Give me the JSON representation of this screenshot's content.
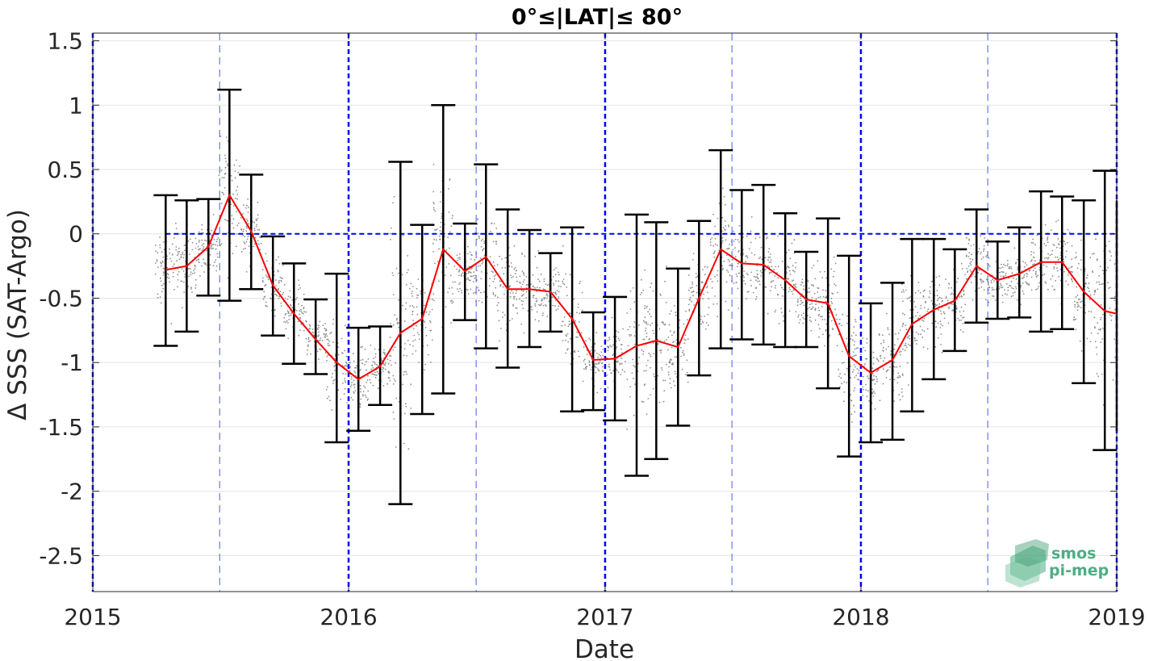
{
  "chart_data": {
    "type": "line",
    "title": "0°≤|LAT|≤ 80°",
    "xlabel": "Date",
    "ylabel": "Δ SSS (SAT-Argo)",
    "xlim": [
      "2015-01-01",
      "2019-01-01"
    ],
    "ylim": [
      -2.78,
      1.56
    ],
    "x_ticks": [
      "2015",
      "2016",
      "2017",
      "2018",
      "2019"
    ],
    "y_ticks": [
      "1.5",
      "1",
      "0.5",
      "0",
      "-0.5",
      "-1",
      "-1.5",
      "-2",
      "-2.5"
    ],
    "grid": true,
    "zero_reference_line": 0,
    "year_boundaries": [
      "2015-01-01",
      "2016-01-01",
      "2017-01-01",
      "2018-01-01",
      "2019-01-01"
    ],
    "half_year_lines": [
      "2015-07-01",
      "2016-07-01",
      "2017-07-01",
      "2018-07-01"
    ],
    "colors": {
      "mean_line": "#ff0000",
      "error_bars": "#000000",
      "reference_lines": "#0000ff",
      "scatter": "#8c8c8c"
    },
    "series": [
      {
        "style": "line-with-error-bars",
        "x": [
          "2015-04-15",
          "2015-05-15",
          "2015-06-15",
          "2015-07-15",
          "2015-08-15",
          "2015-09-15",
          "2015-10-15",
          "2015-11-15",
          "2015-12-15",
          "2016-01-15",
          "2016-02-15",
          "2016-03-15",
          "2016-04-15",
          "2016-05-15",
          "2016-06-15",
          "2016-07-15",
          "2016-08-15",
          "2016-09-15",
          "2016-10-15",
          "2016-11-15",
          "2016-12-15",
          "2017-01-15",
          "2017-02-15",
          "2017-03-15",
          "2017-04-15",
          "2017-05-15",
          "2017-06-15",
          "2017-07-15",
          "2017-08-15",
          "2017-09-15",
          "2017-10-15",
          "2017-11-15",
          "2017-12-15",
          "2018-01-15",
          "2018-02-15",
          "2018-03-15",
          "2018-04-15",
          "2018-05-15",
          "2018-06-15",
          "2018-07-15",
          "2018-08-15",
          "2018-09-15",
          "2018-10-15",
          "2018-11-15",
          "2018-12-15",
          "2019-01-01"
        ],
        "y": [
          -0.28,
          -0.25,
          -0.1,
          0.3,
          0.02,
          -0.4,
          -0.62,
          -0.82,
          -1.0,
          -1.13,
          -1.03,
          -0.77,
          -0.66,
          -0.12,
          -0.29,
          -0.18,
          -0.43,
          -0.43,
          -0.45,
          -0.66,
          -0.98,
          -0.97,
          -0.87,
          -0.83,
          -0.88,
          -0.5,
          -0.12,
          -0.23,
          -0.24,
          -0.36,
          -0.51,
          -0.54,
          -0.95,
          -1.08,
          -0.98,
          -0.7,
          -0.59,
          -0.52,
          -0.25,
          -0.36,
          -0.31,
          -0.22,
          -0.22,
          -0.45,
          -0.6,
          -0.62
        ],
        "y_upper": [
          0.3,
          0.26,
          0.27,
          1.12,
          0.46,
          -0.02,
          -0.23,
          -0.51,
          -0.31,
          -0.73,
          -0.72,
          0.56,
          0.07,
          1.0,
          0.08,
          0.54,
          0.19,
          0.03,
          -0.15,
          0.05,
          -0.61,
          -0.49,
          0.15,
          0.09,
          -0.27,
          0.1,
          0.65,
          0.34,
          0.38,
          0.16,
          -0.14,
          0.12,
          -0.17,
          -0.54,
          -0.38,
          -0.04,
          -0.04,
          -0.12,
          0.19,
          -0.06,
          0.05,
          0.33,
          0.29,
          0.26,
          0.49,
          0.26
        ],
        "y_lower": [
          -0.87,
          -0.76,
          -0.48,
          -0.52,
          -0.43,
          -0.79,
          -1.01,
          -1.09,
          -1.62,
          -1.53,
          -1.33,
          -2.1,
          -1.4,
          -1.24,
          -0.67,
          -0.89,
          -1.04,
          -0.88,
          -0.76,
          -1.38,
          -1.37,
          -1.45,
          -1.88,
          -1.75,
          -1.49,
          -1.1,
          -0.89,
          -0.82,
          -0.86,
          -0.88,
          -0.88,
          -1.2,
          -1.73,
          -1.62,
          -1.6,
          -1.38,
          -1.13,
          -0.91,
          -0.69,
          -0.66,
          -0.65,
          -0.76,
          -0.74,
          -1.16,
          -1.68,
          -1.53
        ]
      }
    ],
    "scatter_cloud": {
      "description_values": "individual match-up differences, monthly clusters",
      "centers": [
        -0.28,
        -0.25,
        -0.1,
        0.3,
        0.02,
        -0.4,
        -0.62,
        -0.82,
        -1.0,
        -1.13,
        -1.03,
        -0.77,
        -0.66,
        -0.12,
        -0.29,
        -0.18,
        -0.43,
        -0.43,
        -0.45,
        -0.66,
        -0.98,
        -0.97,
        -0.87,
        -0.83,
        -0.88,
        -0.5,
        -0.12,
        -0.23,
        -0.24,
        -0.36,
        -0.51,
        -0.54,
        -0.95,
        -1.08,
        -0.98,
        -0.7,
        -0.59,
        -0.52,
        -0.25,
        -0.36,
        -0.31,
        -0.22,
        -0.22,
        -0.45,
        -0.6
      ]
    }
  },
  "logo": {
    "line1": "smos",
    "line2": "pi-mep"
  }
}
